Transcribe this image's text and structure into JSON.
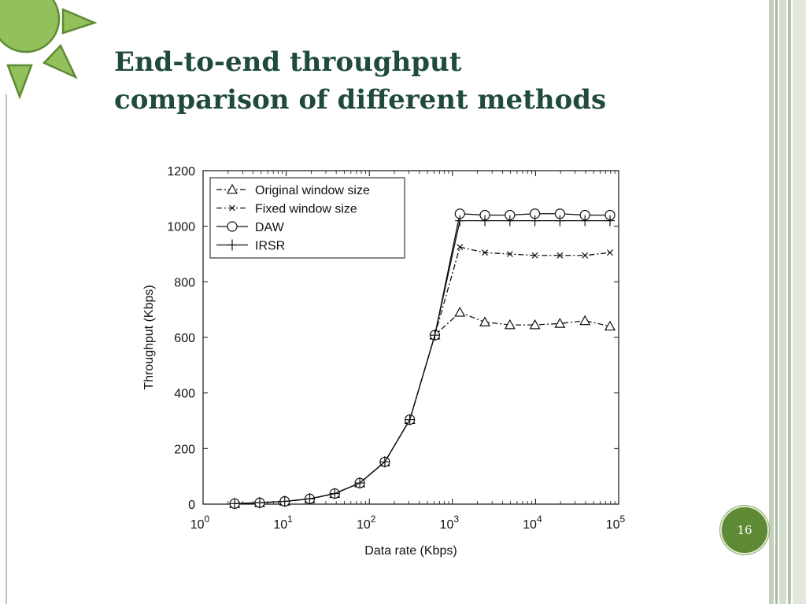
{
  "slide": {
    "title_line1": "End-to-end throughput",
    "title_line2": "comparison of different methods",
    "page_number": "16",
    "accent_color": "#1f4a3c",
    "badge_color": "#5f8a35",
    "decoration_icon": "sun-icon"
  },
  "chart_data": {
    "type": "line",
    "title": "",
    "xlabel": "Data rate (Kbps)",
    "ylabel": "Throughput (Kbps)",
    "xscale": "log",
    "xlim": [
      1,
      100000
    ],
    "ylim": [
      0,
      1200
    ],
    "x_ticks": [
      {
        "base": "10",
        "exp": "0"
      },
      {
        "base": "10",
        "exp": "1"
      },
      {
        "base": "10",
        "exp": "2"
      },
      {
        "base": "10",
        "exp": "3"
      },
      {
        "base": "10",
        "exp": "4"
      },
      {
        "base": "10",
        "exp": "5"
      }
    ],
    "y_ticks": [
      "0",
      "200",
      "400",
      "600",
      "800",
      "1000",
      "1200"
    ],
    "legend_position": "top-left",
    "grid": false,
    "x": [
      2.4,
      4.8,
      9.6,
      19.2,
      38.4,
      76.8,
      153.6,
      307.2,
      614.4,
      1228.8,
      2457.6,
      4915.2,
      9830.4,
      19660.8,
      39321.6,
      78643.2
    ],
    "series": [
      {
        "name": "Original window size",
        "marker": "triangle",
        "dash": "dash-dot",
        "values": [
          2,
          5,
          10,
          19,
          38,
          76,
          152,
          304,
          608,
          690,
          655,
          645,
          645,
          650,
          660,
          640
        ]
      },
      {
        "name": "Fixed window size",
        "marker": "x",
        "dash": "dash-dot",
        "values": [
          2,
          5,
          10,
          19,
          38,
          76,
          152,
          304,
          608,
          925,
          905,
          900,
          895,
          895,
          895,
          905
        ]
      },
      {
        "name": "DAW",
        "marker": "circle",
        "dash": "solid",
        "values": [
          2,
          5,
          10,
          19,
          38,
          76,
          152,
          304,
          608,
          1045,
          1040,
          1040,
          1045,
          1045,
          1040,
          1040
        ]
      },
      {
        "name": "IRSR",
        "marker": "plus",
        "dash": "solid",
        "values": [
          2,
          5,
          10,
          19,
          38,
          76,
          152,
          304,
          608,
          1020,
          1020,
          1020,
          1020,
          1020,
          1020,
          1020
        ]
      }
    ]
  }
}
